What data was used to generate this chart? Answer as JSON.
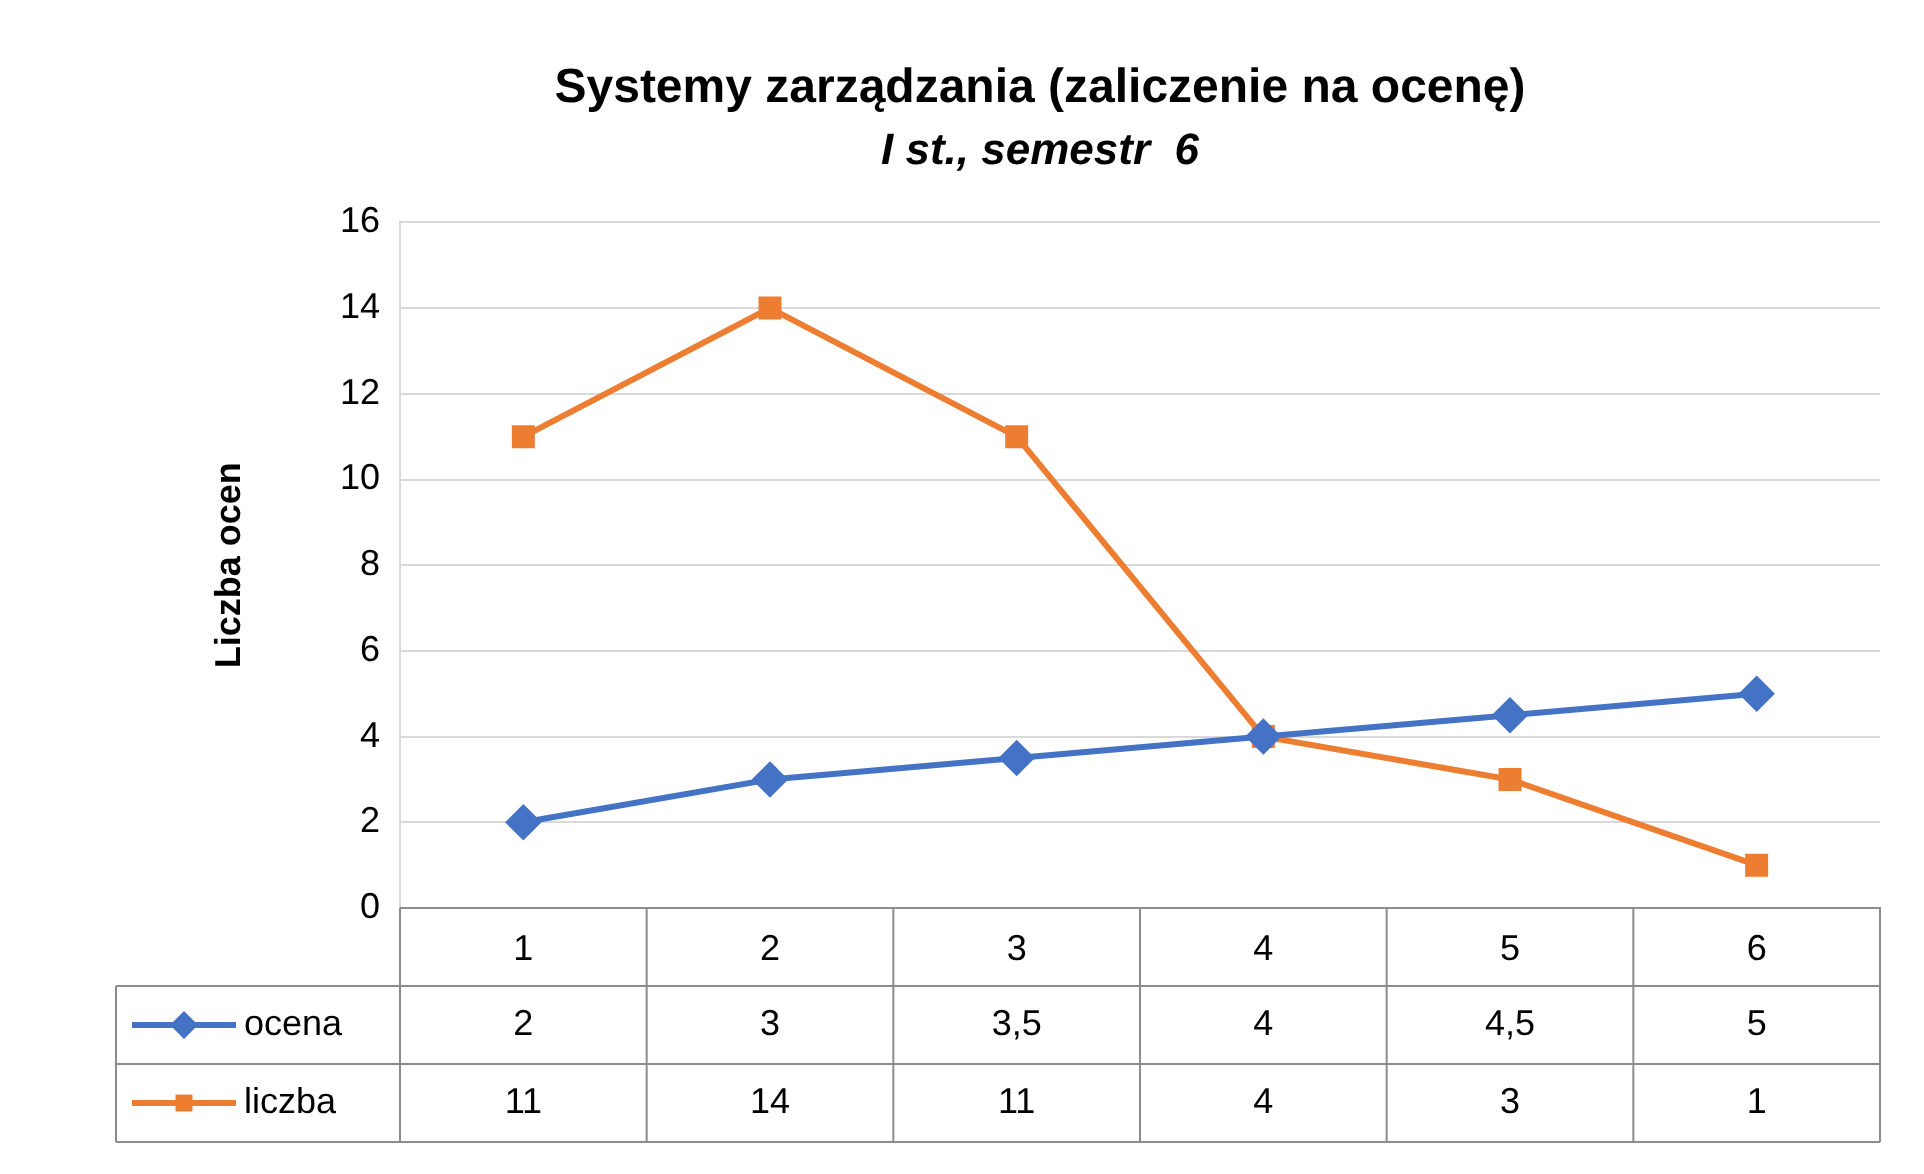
{
  "chart_data": {
    "type": "line",
    "title": "Systemy zarządzania (zaliczenie na ocenę)",
    "subtitle": "I st., semestr  6",
    "ylabel": "Liczba ocen",
    "categories": [
      "1",
      "2",
      "3",
      "4",
      "5",
      "6"
    ],
    "series": [
      {
        "name": "ocena",
        "color": "#4472c4",
        "marker": "diamond",
        "values": [
          2,
          3,
          3.5,
          4,
          4.5,
          5
        ],
        "value_labels": [
          "2",
          "3",
          "3,5",
          "4",
          "4,5",
          "5"
        ]
      },
      {
        "name": "liczba",
        "color": "#ed7d31",
        "marker": "square",
        "values": [
          11,
          14,
          11,
          4,
          3,
          1
        ],
        "value_labels": [
          "11",
          "14",
          "11",
          "4",
          "3",
          "1"
        ]
      }
    ],
    "ylim": [
      0,
      16
    ],
    "yticks": [
      0,
      2,
      4,
      6,
      8,
      10,
      12,
      14,
      16
    ],
    "grid": "y",
    "legend": "bottom",
    "line_style": "solid"
  }
}
